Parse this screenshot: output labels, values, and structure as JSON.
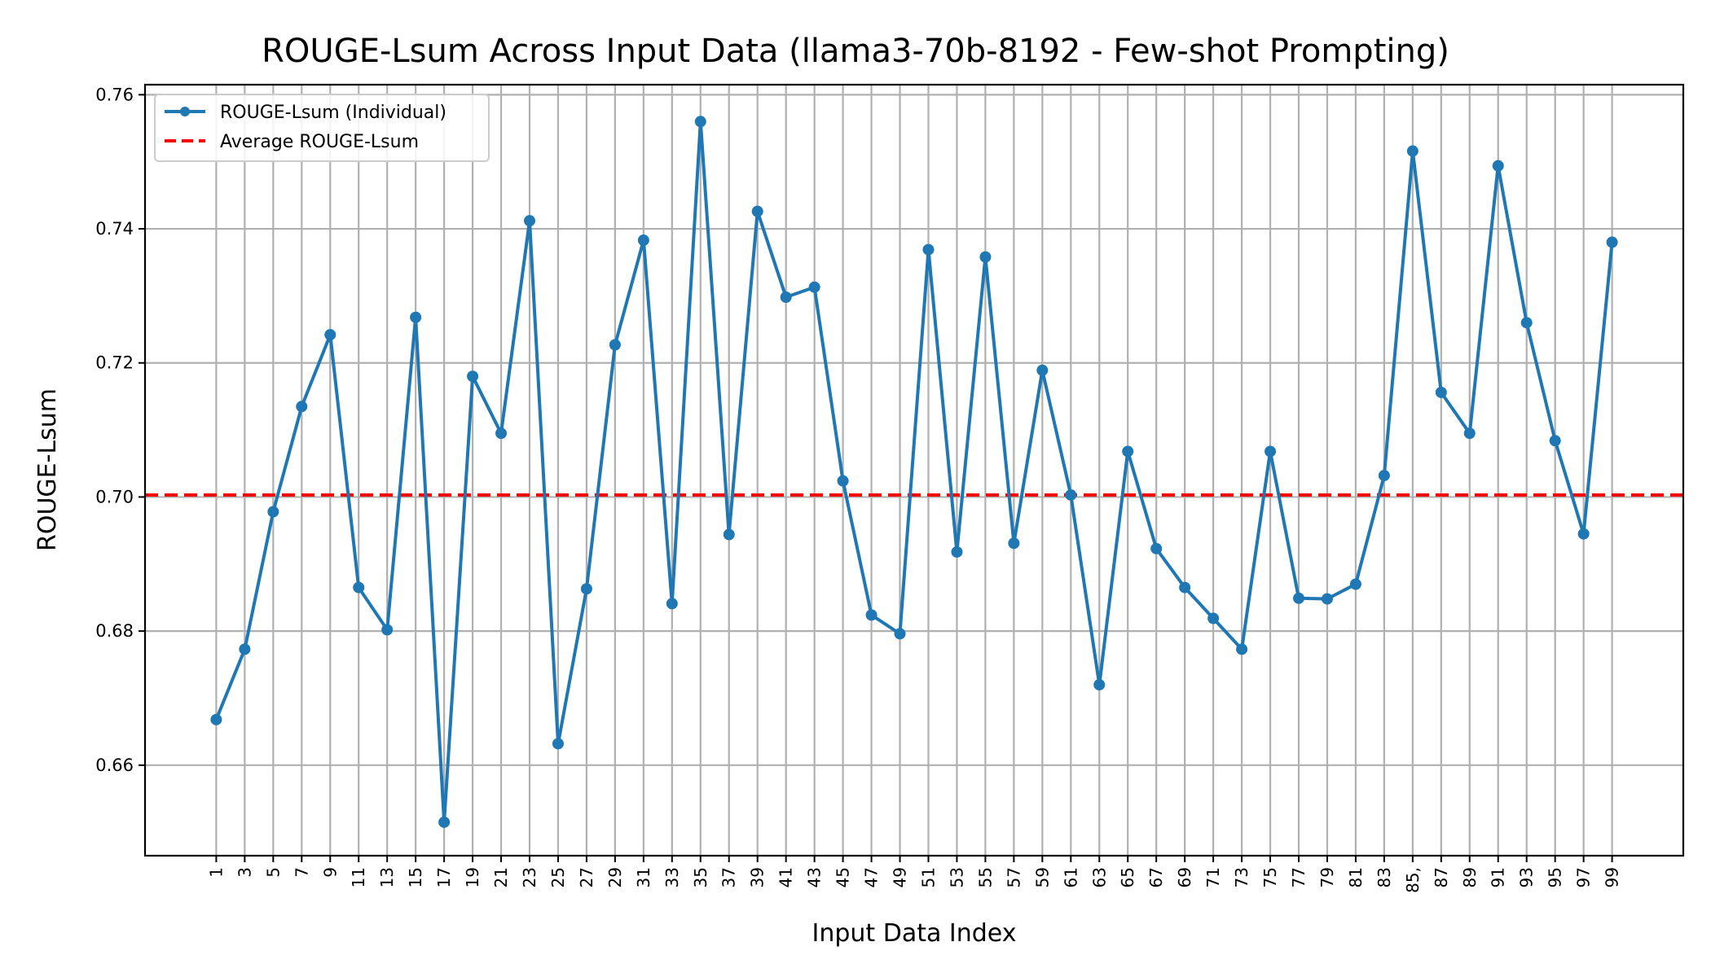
{
  "chart_data": {
    "type": "line",
    "title": "ROUGE-Lsum Across Input Data (llama3-70b-8192 - Few-shot Prompting)",
    "xlabel": "Input Data Index",
    "ylabel": "ROUGE-Lsum",
    "x": [
      1,
      3,
      5,
      7,
      9,
      11,
      13,
      15,
      17,
      19,
      21,
      23,
      25,
      27,
      29,
      31,
      33,
      35,
      37,
      39,
      41,
      43,
      45,
      47,
      49,
      51,
      53,
      55,
      57,
      59,
      61,
      63,
      65,
      67,
      69,
      71,
      73,
      75,
      77,
      79,
      81,
      83,
      85,
      87,
      89,
      91,
      93,
      95,
      97,
      99
    ],
    "xticks": [
      "1",
      "3",
      "5",
      "7",
      "9",
      "11",
      "13",
      "15",
      "17",
      "19",
      "21",
      "23",
      "25",
      "27",
      "29",
      "31",
      "33",
      "35",
      "37",
      "39",
      "41",
      "43",
      "45",
      "47",
      "49",
      "51",
      "53",
      "55",
      "57",
      "59",
      "61",
      "63",
      "65",
      "67",
      "69",
      "71",
      "73",
      "75",
      "77",
      "79",
      "81",
      "83",
      "85,",
      "87",
      "89",
      "91",
      "93",
      "95",
      "97",
      "99"
    ],
    "xlim": [
      -4,
      104
    ],
    "ylim": [
      0.6465,
      0.7615
    ],
    "yticks": [
      0.66,
      0.68,
      0.7,
      0.72,
      0.74,
      0.76
    ],
    "ytick_labels": [
      "0.66",
      "0.68",
      "0.70",
      "0.72",
      "0.74",
      "0.76"
    ],
    "grid": true,
    "legend_position": "top-left",
    "series": [
      {
        "name": "ROUGE-Lsum (Individual)",
        "color": "#1f77b4",
        "style": "line-with-markers",
        "values": [
          0.6668,
          0.6773,
          0.6978,
          0.7135,
          0.7242,
          0.6865,
          0.6802,
          0.7268,
          0.6515,
          0.718,
          0.7095,
          0.7412,
          0.6632,
          0.6863,
          0.7227,
          0.7383,
          0.6841,
          0.756,
          0.6944,
          0.7426,
          0.7298,
          0.7313,
          0.7024,
          0.6824,
          0.6796,
          0.7369,
          0.6918,
          0.7358,
          0.6931,
          0.7189,
          0.7003,
          0.672,
          0.7068,
          0.6923,
          0.6865,
          0.6819,
          0.6773,
          0.7068,
          0.6849,
          0.6848,
          0.687,
          0.7032,
          0.7516,
          0.7156,
          0.7095,
          0.7494,
          0.726,
          0.7084,
          0.6945,
          0.738
        ]
      },
      {
        "name": "Average ROUGE-Lsum",
        "color": "#ff0000",
        "style": "dashed-hline",
        "value": 0.7003
      }
    ]
  }
}
